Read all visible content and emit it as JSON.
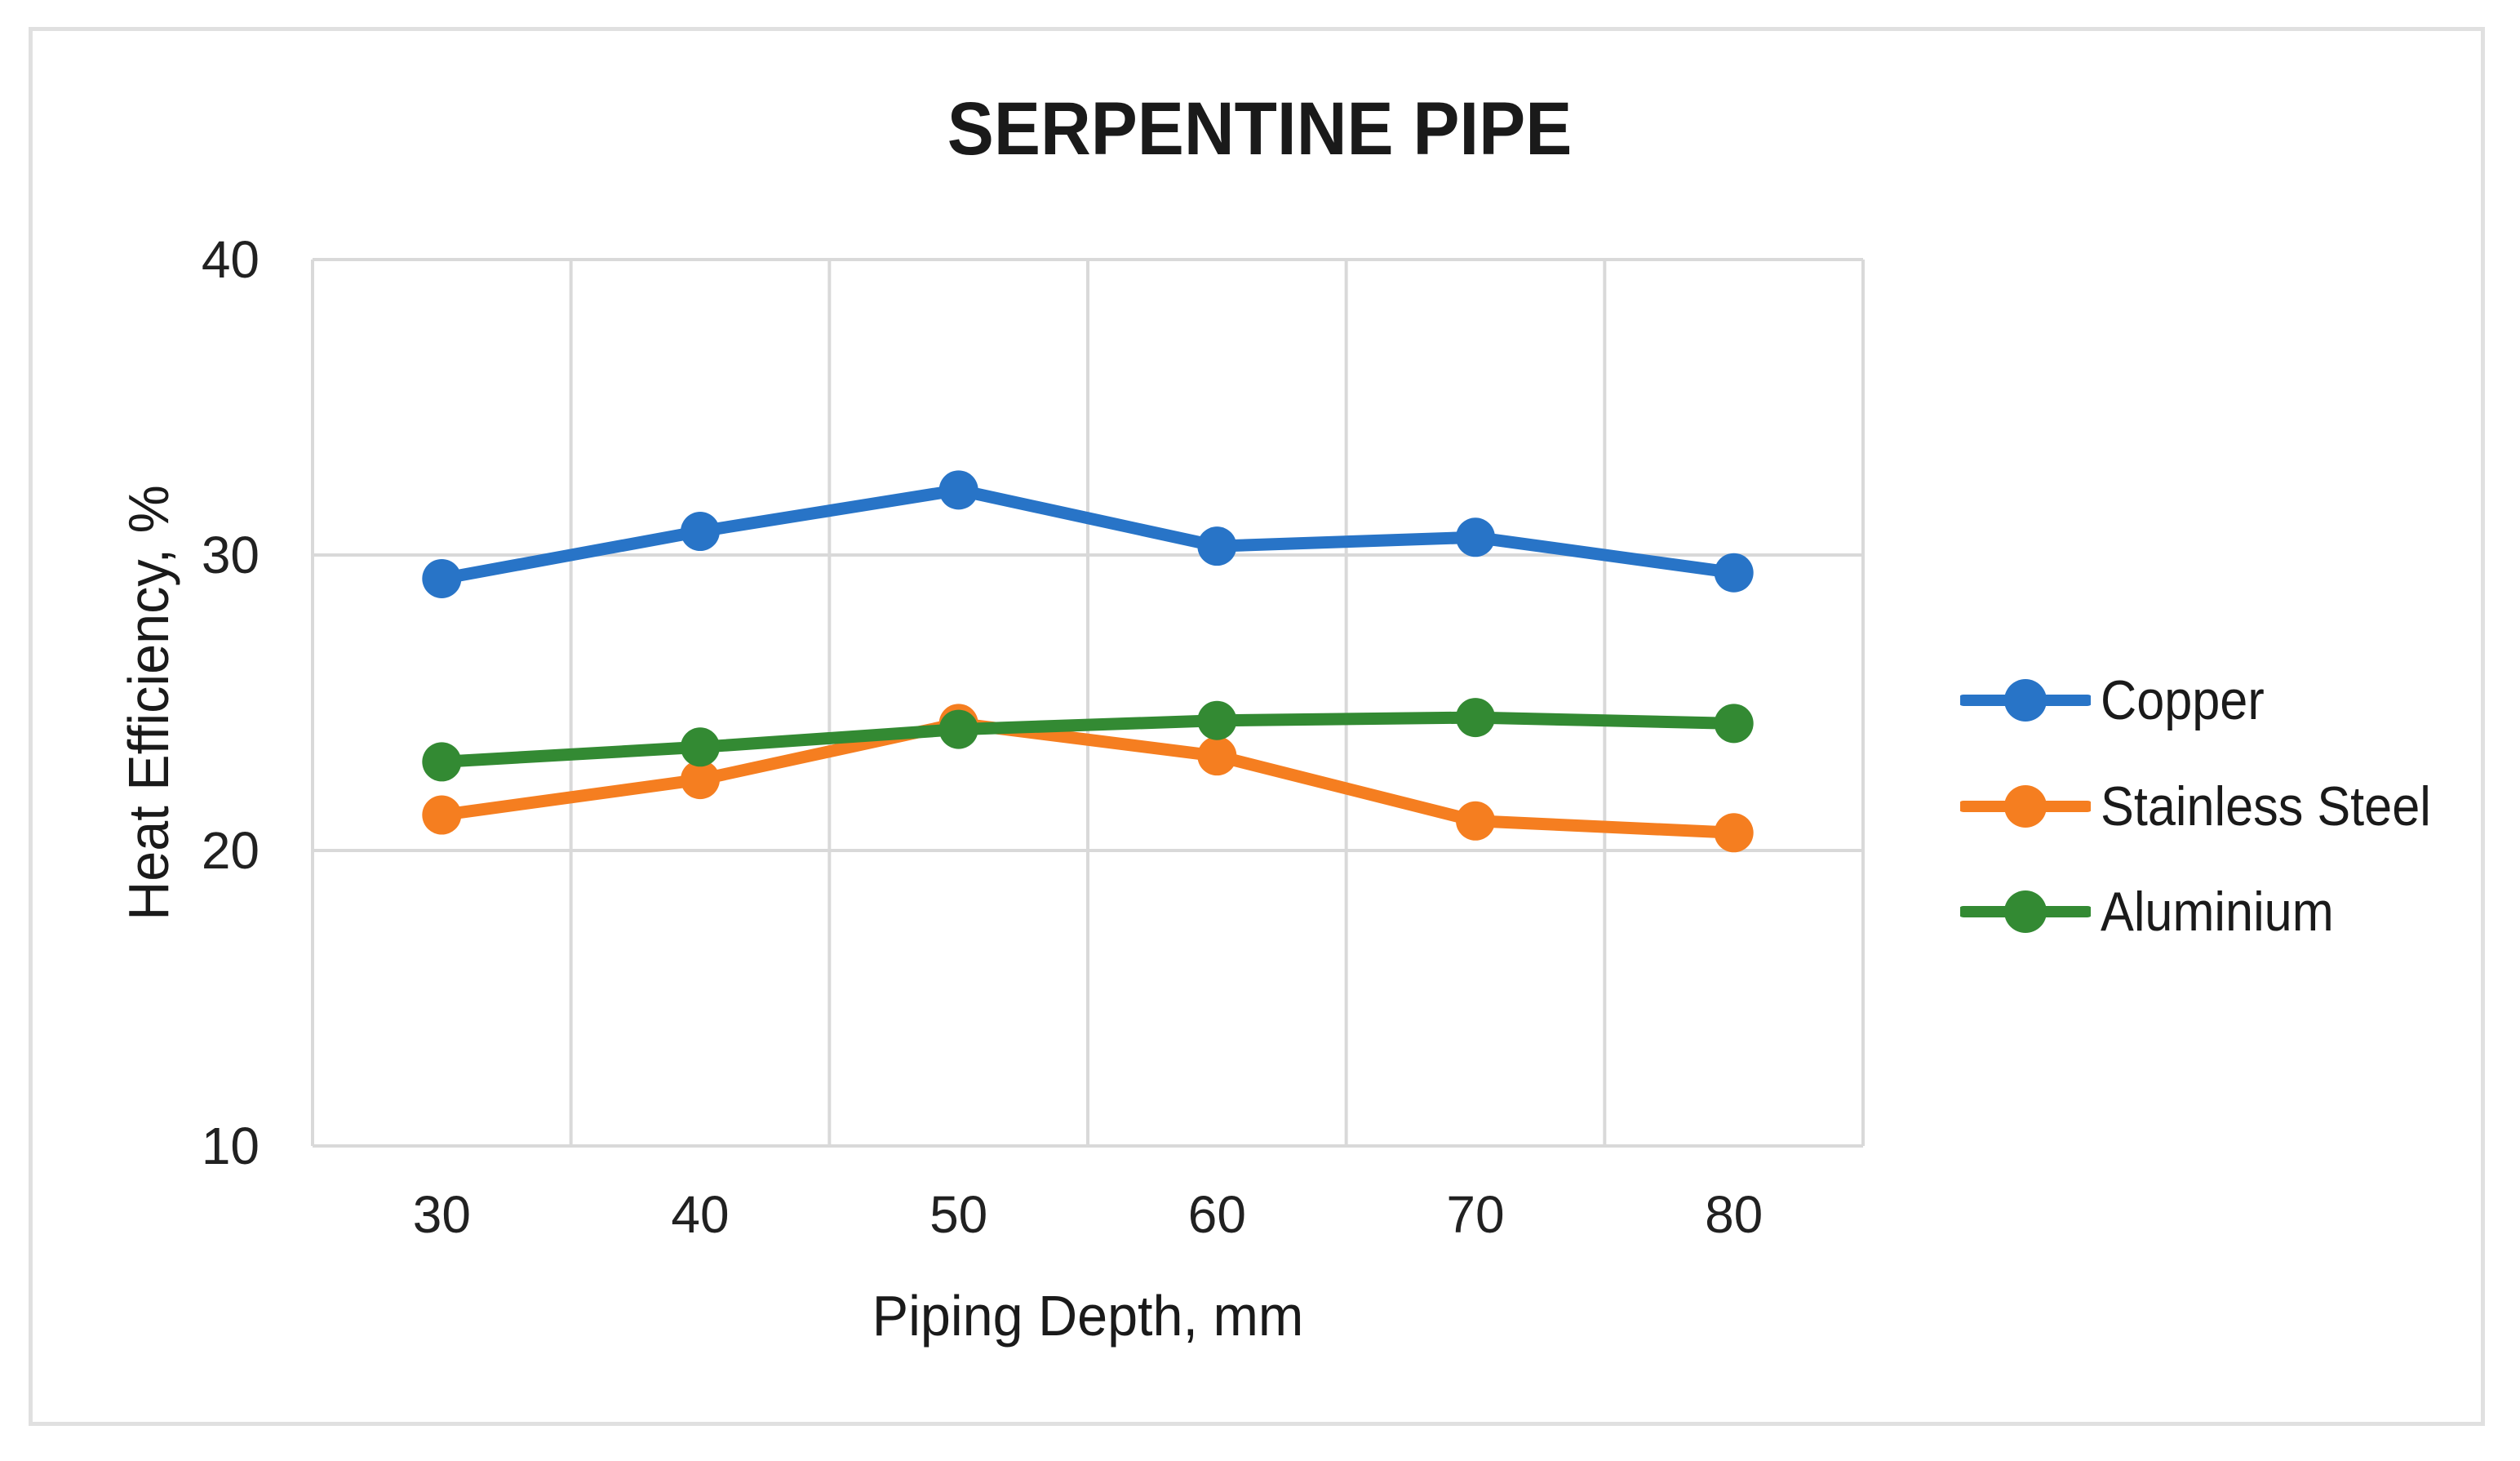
{
  "page": {
    "background": "#FFFFFF",
    "frame_border_color": "#E0E0E0"
  },
  "chart_data": {
    "type": "line",
    "title": "SERPENTINE PIPE",
    "xlabel": "Piping Depth, mm",
    "ylabel": "Heat Efficiency, %",
    "x": [
      30,
      40,
      50,
      60,
      70,
      80
    ],
    "xticklabels": [
      "30",
      "40",
      "50",
      "60",
      "70",
      "80"
    ],
    "series": [
      {
        "name": "Copper",
        "color": "#2874C7",
        "marker": "circle",
        "values": [
          29.2,
          30.8,
          32.2,
          30.3,
          30.6,
          29.4
        ]
      },
      {
        "name": "Stainless Steel",
        "color": "#F57E20",
        "marker": "circle",
        "values": [
          21.2,
          22.4,
          24.3,
          23.2,
          21.0,
          20.6
        ]
      },
      {
        "name": "Aluminium",
        "color": "#338A33",
        "marker": "circle",
        "values": [
          23.0,
          23.5,
          24.1,
          24.4,
          24.5,
          24.3
        ]
      }
    ],
    "ylim": [
      10,
      40
    ],
    "yticks": [
      40,
      30,
      20,
      10
    ],
    "grid": true,
    "gridline_color": "#D9D9D9",
    "legend_position": "right",
    "text_color": "#1A1A1A"
  }
}
